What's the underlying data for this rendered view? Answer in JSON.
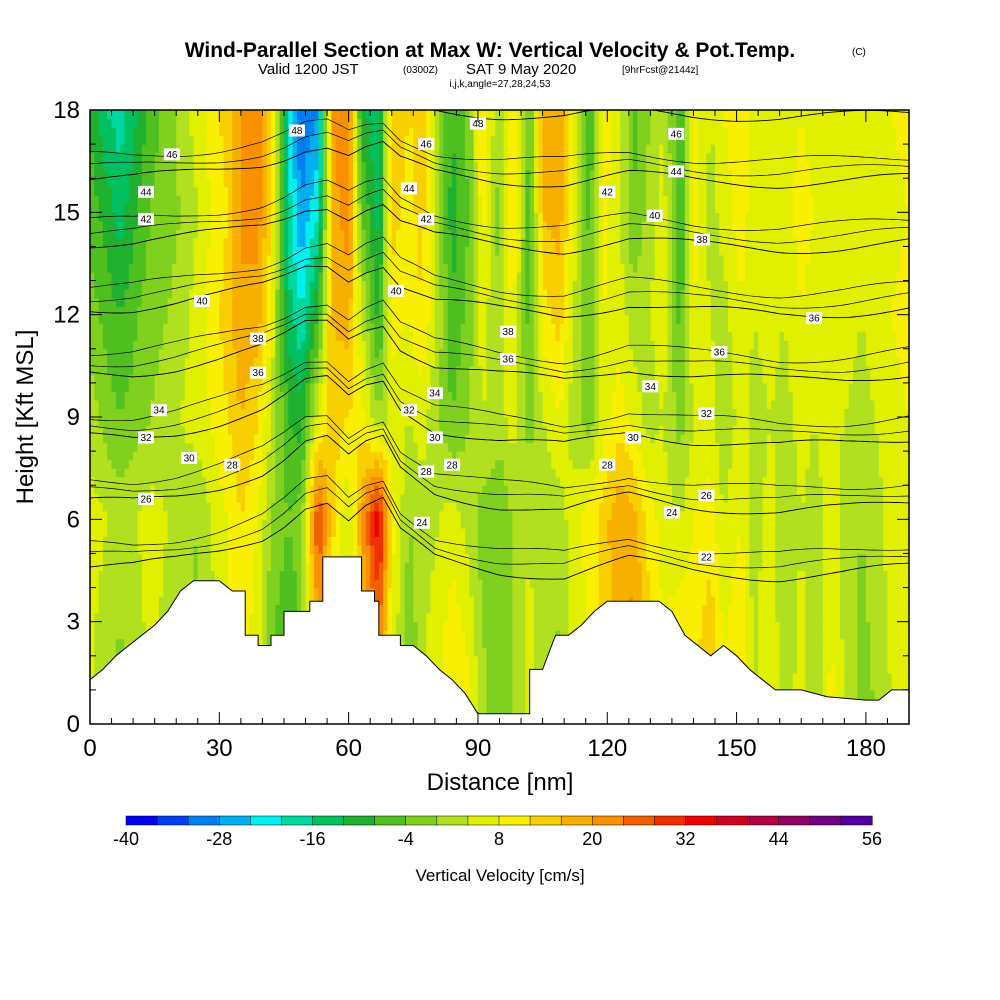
{
  "chart_data": {
    "type": "heatmap",
    "title": "Wind-Parallel Section at Max W: Vertical Velocity & Pot.Temp.",
    "title_suffix": "(C)",
    "subtitle_valid": "Valid 1200 JST",
    "subtitle_z": "(0300Z)",
    "subtitle_date": "SAT 9 May 2020",
    "subtitle_fcst": "[9hrFcst@2144z]",
    "subtitle2": "i,j,k,angle=27,28,24,53",
    "xlabel": "Distance [nm]",
    "ylabel": "Height [Kft MSL]",
    "xlim": [
      0,
      190
    ],
    "ylim": [
      0,
      18
    ],
    "x_ticks": [
      "0",
      "30",
      "60",
      "90",
      "120",
      "150",
      "180"
    ],
    "y_ticks": [
      "0",
      "3",
      "6",
      "9",
      "12",
      "15",
      "18"
    ],
    "colorbar": {
      "label": "Vertical Velocity [cm/s]",
      "range": [
        -40,
        56
      ],
      "tick_labels": [
        "-40",
        "-28",
        "-16",
        "-4",
        "8",
        "20",
        "32",
        "44",
        "56"
      ],
      "colors": [
        "#0000f0",
        "#0040f0",
        "#0080f0",
        "#00b0f0",
        "#00f0f0",
        "#00d8a0",
        "#00c060",
        "#20b030",
        "#50c020",
        "#80d020",
        "#b0e020",
        "#e0f000",
        "#f8f000",
        "#f8d000",
        "#f8b000",
        "#f89000",
        "#f06000",
        "#f03000",
        "#f00000",
        "#d00020",
        "#b00040",
        "#900060",
        "#700080",
        "#5000a0"
      ]
    },
    "terrain_kft": [
      [
        0,
        1.3
      ],
      [
        3,
        1.6
      ],
      [
        6,
        2.0
      ],
      [
        9,
        2.3
      ],
      [
        12,
        2.6
      ],
      [
        15,
        2.9
      ],
      [
        18,
        3.3
      ],
      [
        21,
        3.9
      ],
      [
        24,
        4.2
      ],
      [
        30,
        4.2
      ],
      [
        33,
        3.9
      ],
      [
        36,
        3.9
      ],
      [
        36,
        2.6
      ],
      [
        39,
        2.6
      ],
      [
        39,
        2.3
      ],
      [
        42,
        2.3
      ],
      [
        42,
        2.6
      ],
      [
        45,
        2.6
      ],
      [
        45,
        3.3
      ],
      [
        51,
        3.3
      ],
      [
        51,
        3.6
      ],
      [
        54,
        3.6
      ],
      [
        54,
        4.9
      ],
      [
        63,
        4.9
      ],
      [
        63,
        3.9
      ],
      [
        66,
        3.9
      ],
      [
        66,
        3.6
      ],
      [
        67,
        3.6
      ],
      [
        67,
        2.6
      ],
      [
        72,
        2.6
      ],
      [
        72,
        2.3
      ],
      [
        75,
        2.3
      ],
      [
        78,
        2.0
      ],
      [
        81,
        1.6
      ],
      [
        84,
        1.3
      ],
      [
        87,
        0.9
      ],
      [
        90,
        0.3
      ],
      [
        102,
        0.3
      ],
      [
        102,
        1.6
      ],
      [
        105,
        1.6
      ],
      [
        108,
        2.6
      ],
      [
        111,
        2.6
      ],
      [
        114,
        2.9
      ],
      [
        117,
        3.3
      ],
      [
        120,
        3.6
      ],
      [
        132,
        3.6
      ],
      [
        135,
        3.3
      ],
      [
        138,
        2.6
      ],
      [
        141,
        2.3
      ],
      [
        144,
        2.0
      ],
      [
        147,
        2.3
      ],
      [
        150,
        2.0
      ],
      [
        153,
        1.6
      ],
      [
        156,
        1.3
      ],
      [
        159,
        1.0
      ],
      [
        165,
        1.0
      ],
      [
        171,
        0.8
      ],
      [
        180,
        0.7
      ],
      [
        183,
        0.7
      ],
      [
        186,
        1.0
      ],
      [
        190,
        1.0
      ]
    ],
    "w_field": {
      "columns_nm": [
        0,
        4,
        7,
        11,
        14,
        18,
        21,
        25,
        28,
        32,
        35,
        39,
        42,
        46,
        49,
        53,
        56,
        60,
        63,
        67,
        70,
        74,
        77,
        81,
        84,
        88,
        91,
        95,
        98,
        102,
        105,
        109,
        112,
        116,
        119,
        123,
        126,
        130,
        133,
        137,
        140,
        144,
        147,
        151,
        154,
        158,
        161,
        165,
        168,
        172,
        175,
        179,
        182,
        186,
        190
      ],
      "levels_kft": [
        0,
        6,
        9,
        12,
        15,
        18
      ],
      "values_cms": [
        [
          4,
          6,
          2,
          -2,
          -6,
          -8
        ],
        [
          0,
          4,
          -2,
          -6,
          -10,
          -16
        ],
        [
          -2,
          2,
          -4,
          -8,
          -14,
          -18
        ],
        [
          2,
          4,
          -2,
          -4,
          -8,
          -12
        ],
        [
          4,
          6,
          0,
          -2,
          -4,
          -6
        ],
        [
          2,
          4,
          2,
          0,
          -2,
          -2
        ],
        [
          0,
          2,
          4,
          2,
          0,
          2
        ],
        [
          -2,
          0,
          6,
          6,
          4,
          6
        ],
        [
          2,
          4,
          8,
          10,
          8,
          10
        ],
        [
          6,
          8,
          12,
          14,
          12,
          14
        ],
        [
          10,
          12,
          16,
          20,
          20,
          20
        ],
        [
          4,
          8,
          12,
          18,
          22,
          22
        ],
        [
          -6,
          0,
          4,
          8,
          12,
          14
        ],
        [
          -10,
          -4,
          -8,
          -14,
          -18,
          -20
        ],
        [
          -4,
          -2,
          -10,
          -20,
          -28,
          -32
        ],
        [
          10,
          30,
          6,
          -8,
          -20,
          -28
        ],
        [
          6,
          14,
          14,
          16,
          18,
          20
        ],
        [
          0,
          4,
          12,
          18,
          22,
          24
        ],
        [
          8,
          20,
          10,
          4,
          -4,
          -10
        ],
        [
          14,
          36,
          0,
          -10,
          -14,
          -16
        ],
        [
          6,
          10,
          6,
          10,
          14,
          16
        ],
        [
          -6,
          0,
          4,
          8,
          10,
          12
        ],
        [
          4,
          2,
          6,
          12,
          14,
          14
        ],
        [
          8,
          4,
          0,
          2,
          0,
          -2
        ],
        [
          14,
          6,
          -4,
          -8,
          -10,
          -8
        ],
        [
          10,
          2,
          0,
          -2,
          -4,
          -2
        ],
        [
          2,
          -2,
          4,
          6,
          10,
          12
        ],
        [
          -4,
          -4,
          2,
          0,
          -2,
          0
        ],
        [
          0,
          0,
          6,
          8,
          14,
          12
        ],
        [
          6,
          4,
          -2,
          -6,
          -8,
          -4
        ],
        [
          2,
          0,
          4,
          10,
          16,
          18
        ],
        [
          -2,
          2,
          8,
          14,
          18,
          20
        ],
        [
          4,
          6,
          2,
          4,
          8,
          10
        ],
        [
          8,
          10,
          -2,
          -4,
          -6,
          -8
        ],
        [
          12,
          14,
          6,
          8,
          10,
          10
        ],
        [
          18,
          20,
          10,
          6,
          4,
          6
        ],
        [
          24,
          18,
          6,
          2,
          -4,
          -6
        ],
        [
          14,
          10,
          2,
          4,
          2,
          0
        ],
        [
          10,
          6,
          4,
          8,
          6,
          4
        ],
        [
          16,
          4,
          -2,
          -6,
          -8,
          -8
        ],
        [
          12,
          8,
          4,
          8,
          10,
          10
        ],
        [
          18,
          10,
          6,
          4,
          2,
          4
        ],
        [
          10,
          4,
          0,
          2,
          6,
          8
        ],
        [
          14,
          8,
          6,
          8,
          10,
          10
        ],
        [
          4,
          2,
          2,
          4,
          6,
          6
        ],
        [
          8,
          6,
          4,
          6,
          8,
          8
        ],
        [
          2,
          0,
          2,
          4,
          6,
          6
        ],
        [
          6,
          4,
          6,
          8,
          10,
          8
        ],
        [
          0,
          2,
          4,
          6,
          8,
          6
        ],
        [
          10,
          6,
          6,
          8,
          6,
          8
        ],
        [
          4,
          2,
          4,
          6,
          8,
          6
        ],
        [
          -2,
          0,
          2,
          4,
          6,
          4
        ],
        [
          0,
          2,
          4,
          6,
          4,
          6
        ],
        [
          4,
          6,
          6,
          8,
          6,
          8
        ],
        [
          6,
          8,
          8,
          10,
          8,
          10
        ]
      ]
    },
    "theta_contours": {
      "levels": [
        22,
        24,
        26,
        28,
        30,
        32,
        34,
        36,
        38,
        40,
        42,
        44,
        46,
        48
      ],
      "profile_x_nm": [
        0,
        10,
        20,
        30,
        40,
        45,
        50,
        55,
        60,
        64,
        68,
        72,
        80,
        95,
        110,
        125,
        140,
        160,
        175,
        190
      ],
      "profile_lift_kft": [
        0,
        0,
        0.2,
        0.5,
        0.9,
        1.3,
        1.8,
        1.9,
        1.3,
        1.7,
        1.9,
        1.0,
        0.3,
        -0.1,
        -0.3,
        0.2,
        -0.1,
        -0.3,
        -0.2,
        0
      ],
      "labels": [
        {
          "text": "48",
          "x": 48,
          "y": 17.4
        },
        {
          "text": "48",
          "x": 90,
          "y": 17.6
        },
        {
          "text": "46",
          "x": 19,
          "y": 16.7
        },
        {
          "text": "46",
          "x": 78,
          "y": 17.0
        },
        {
          "text": "46",
          "x": 136,
          "y": 17.3
        },
        {
          "text": "44",
          "x": 13,
          "y": 15.6
        },
        {
          "text": "44",
          "x": 74,
          "y": 15.7
        },
        {
          "text": "44",
          "x": 136,
          "y": 16.2
        },
        {
          "text": "42",
          "x": 13,
          "y": 14.8
        },
        {
          "text": "42",
          "x": 78,
          "y": 14.8
        },
        {
          "text": "42",
          "x": 120,
          "y": 15.6
        },
        {
          "text": "40",
          "x": 131,
          "y": 14.9
        },
        {
          "text": "40",
          "x": 26,
          "y": 12.4
        },
        {
          "text": "40",
          "x": 71,
          "y": 12.7
        },
        {
          "text": "38",
          "x": 142,
          "y": 14.2
        },
        {
          "text": "38",
          "x": 39,
          "y": 11.3
        },
        {
          "text": "38",
          "x": 97,
          "y": 11.5
        },
        {
          "text": "36",
          "x": 168,
          "y": 11.9
        },
        {
          "text": "36",
          "x": 39,
          "y": 10.3
        },
        {
          "text": "36",
          "x": 97,
          "y": 10.7
        },
        {
          "text": "36",
          "x": 146,
          "y": 10.9
        },
        {
          "text": "34",
          "x": 16,
          "y": 9.2
        },
        {
          "text": "34",
          "x": 80,
          "y": 9.7
        },
        {
          "text": "34",
          "x": 130,
          "y": 9.9
        },
        {
          "text": "32",
          "x": 13,
          "y": 8.4
        },
        {
          "text": "32",
          "x": 74,
          "y": 9.2
        },
        {
          "text": "32",
          "x": 143,
          "y": 9.1
        },
        {
          "text": "30",
          "x": 23,
          "y": 7.8
        },
        {
          "text": "30",
          "x": 80,
          "y": 8.4
        },
        {
          "text": "30",
          "x": 126,
          "y": 8.4
        },
        {
          "text": "28",
          "x": 33,
          "y": 7.6
        },
        {
          "text": "28",
          "x": 84,
          "y": 7.6
        },
        {
          "text": "28",
          "x": 120,
          "y": 7.6
        },
        {
          "text": "28",
          "x": 78,
          "y": 7.4
        },
        {
          "text": "26",
          "x": 13,
          "y": 6.6
        },
        {
          "text": "26",
          "x": 143,
          "y": 6.7
        },
        {
          "text": "24",
          "x": 77,
          "y": 5.9
        },
        {
          "text": "24",
          "x": 135,
          "y": 6.2
        },
        {
          "text": "22",
          "x": 143,
          "y": 4.9
        }
      ]
    }
  }
}
